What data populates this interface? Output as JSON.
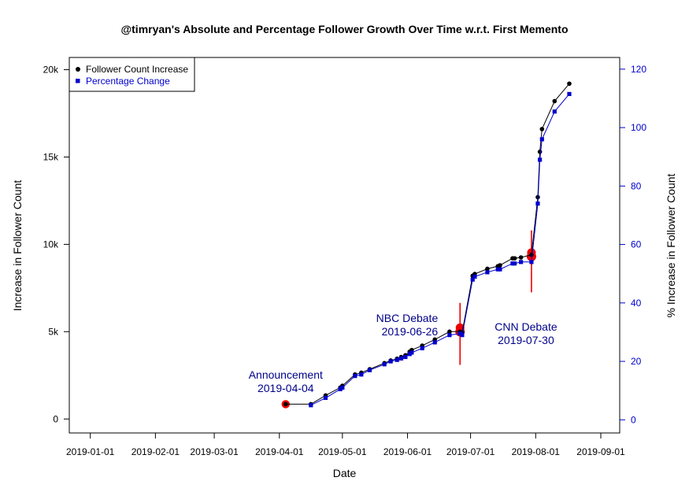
{
  "chart_data": {
    "type": "line",
    "title": "@timryan's Absolute and Percentage Follower Growth Over Time w.r.t. First Memento",
    "xlabel": "Date",
    "ylabel": "Increase in Follower Count",
    "y2label": "% Increase in Follower Count",
    "xlim": [
      "2018-12-22",
      "2019-09-10"
    ],
    "x_ticks": [
      "2019-01-01",
      "2019-02-01",
      "2019-03-01",
      "2019-04-01",
      "2019-05-01",
      "2019-06-01",
      "2019-07-01",
      "2019-08-01",
      "2019-09-01"
    ],
    "ylim": [
      -800,
      20700
    ],
    "y_ticks": [
      {
        "value": 0,
        "label": "0"
      },
      {
        "value": 5000,
        "label": "5k"
      },
      {
        "value": 10000,
        "label": "10k"
      },
      {
        "value": 15000,
        "label": "15k"
      },
      {
        "value": 20000,
        "label": "20k"
      }
    ],
    "y2lim": [
      -4.5,
      124
    ],
    "y2_ticks": [
      0,
      20,
      40,
      60,
      80,
      100,
      120
    ],
    "colors": {
      "series1": "#000000",
      "series2": "#0000cc",
      "events": "#ee0000",
      "annotation": "#00008b"
    },
    "legend_position": "top-left",
    "series": [
      {
        "name": "Follower Count Increase",
        "axis": "left",
        "marker": "circle",
        "x": [
          "2019-04-04",
          "2019-04-16",
          "2019-04-23",
          "2019-04-30",
          "2019-05-01",
          "2019-05-07",
          "2019-05-10",
          "2019-05-14",
          "2019-05-21",
          "2019-05-24",
          "2019-05-27",
          "2019-05-29",
          "2019-05-31",
          "2019-06-02",
          "2019-06-03",
          "2019-06-08",
          "2019-06-14",
          "2019-06-21",
          "2019-06-26",
          "2019-06-27",
          "2019-07-02",
          "2019-07-03",
          "2019-07-09",
          "2019-07-14",
          "2019-07-15",
          "2019-07-21",
          "2019-07-22",
          "2019-07-25",
          "2019-07-30",
          "2019-08-02",
          "2019-08-03",
          "2019-08-04",
          "2019-08-10",
          "2019-08-17"
        ],
        "y": [
          850,
          850,
          1350,
          1800,
          1900,
          2550,
          2650,
          2850,
          3200,
          3350,
          3450,
          3550,
          3650,
          3850,
          3950,
          4200,
          4550,
          5000,
          5000,
          4950,
          8200,
          8300,
          8600,
          8750,
          8800,
          9200,
          9200,
          9250,
          9400,
          12700,
          15300,
          16600,
          18200,
          19200
        ]
      },
      {
        "name": "Percentage Change",
        "axis": "right",
        "marker": "square",
        "x": [
          "2019-04-16",
          "2019-04-23",
          "2019-04-30",
          "2019-05-01",
          "2019-05-07",
          "2019-05-10",
          "2019-05-14",
          "2019-05-21",
          "2019-05-24",
          "2019-05-27",
          "2019-05-29",
          "2019-05-31",
          "2019-06-02",
          "2019-06-03",
          "2019-06-08",
          "2019-06-14",
          "2019-06-21",
          "2019-06-26",
          "2019-06-27",
          "2019-07-02",
          "2019-07-03",
          "2019-07-09",
          "2019-07-14",
          "2019-07-15",
          "2019-07-21",
          "2019-07-22",
          "2019-07-25",
          "2019-07-30",
          "2019-08-02",
          "2019-08-03",
          "2019-08-04",
          "2019-08-10",
          "2019-08-17"
        ],
        "y": [
          5,
          7.5,
          10.5,
          11,
          15,
          15.5,
          17,
          19,
          20,
          20.5,
          21,
          21.5,
          22.5,
          23,
          24.5,
          26.5,
          29,
          29.5,
          29,
          48,
          49,
          50.5,
          51.5,
          51.5,
          53.5,
          53.5,
          54,
          54,
          74,
          89,
          96,
          105.5,
          111.5
        ]
      }
    ],
    "events": [
      {
        "label": "Announcement",
        "date": "2019-04-04",
        "date_label": "2019-04-04",
        "y": 850,
        "has_line": false,
        "label_y": 2300
      },
      {
        "label": "NBC Debate",
        "date": "2019-06-26",
        "date_label": "2019-06-26",
        "y": 5000,
        "has_line": true,
        "line_range": [
          3100,
          6650
        ],
        "label_y": 5550
      },
      {
        "label": "CNN Debate",
        "date": "2019-07-30",
        "date_label": "2019-07-30",
        "y": 9300,
        "has_line": true,
        "line_range": [
          7250,
          10800
        ],
        "label_y": 5050
      }
    ]
  }
}
